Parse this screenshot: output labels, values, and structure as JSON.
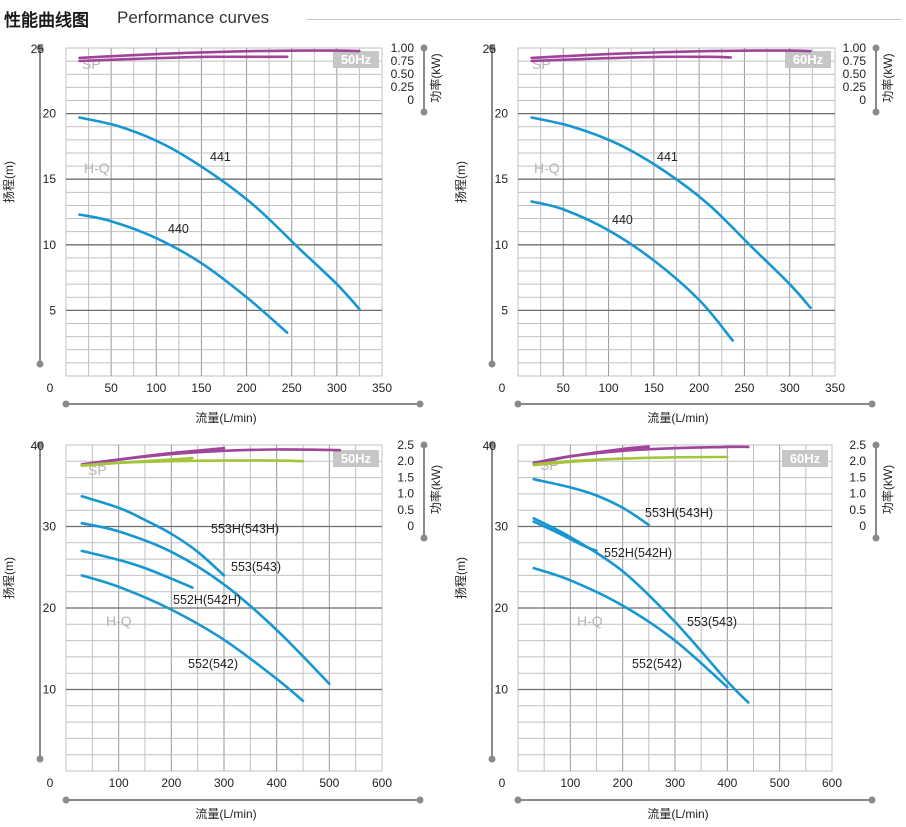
{
  "header": {
    "title_cn": "性能曲线图",
    "title_en": "Performance curves"
  },
  "chart_data": [
    {
      "type": "line",
      "badge": "50Hz",
      "xlabel": "流量(L/min)",
      "ylabel": "扬程(m)",
      "y2label": "功率(kW)",
      "xlim": [
        0,
        350
      ],
      "ylim": [
        0,
        25
      ],
      "y2lim": [
        0,
        1.0
      ],
      "xticks": [
        0,
        50,
        100,
        150,
        200,
        250,
        300,
        350
      ],
      "yticks": [
        5,
        10,
        15,
        20,
        25
      ],
      "y2ticks": [
        "0",
        "0.25",
        "0.50",
        "0.75",
        "1.00"
      ],
      "hq_label": "H-Q",
      "sp_label": "SP",
      "hq_series": [
        {
          "name": "441",
          "x": [
            15,
            60,
            110,
            160,
            210,
            260,
            300,
            325
          ],
          "y": [
            19.7,
            19.0,
            17.6,
            15.5,
            12.9,
            9.6,
            7.0,
            5.1
          ]
        },
        {
          "name": "440",
          "x": [
            15,
            50,
            100,
            150,
            200,
            245
          ],
          "y": [
            12.3,
            11.8,
            10.5,
            8.6,
            6.0,
            3.3
          ]
        }
      ],
      "sp_series": [
        {
          "x": [
            15,
            60,
            110,
            160,
            210,
            260,
            300,
            325
          ],
          "y": [
            0.81,
            0.85,
            0.89,
            0.92,
            0.94,
            0.95,
            0.95,
            0.94
          ]
        },
        {
          "x": [
            15,
            60,
            110,
            160,
            210,
            245
          ],
          "y": [
            0.75,
            0.78,
            0.81,
            0.83,
            0.83,
            0.83
          ]
        }
      ]
    },
    {
      "type": "line",
      "badge": "60Hz",
      "xlabel": "流量(L/min)",
      "ylabel": "扬程(m)",
      "y2label": "功率(kW)",
      "xlim": [
        0,
        350
      ],
      "ylim": [
        0,
        25
      ],
      "y2lim": [
        0,
        1.0
      ],
      "xticks": [
        0,
        50,
        100,
        150,
        200,
        250,
        300,
        350
      ],
      "yticks": [
        5,
        10,
        15,
        20,
        25
      ],
      "y2ticks": [
        "0",
        "0.25",
        "0.50",
        "0.75",
        "1.00"
      ],
      "hq_label": "H-Q",
      "sp_label": "SP",
      "hq_series": [
        {
          "name": "441",
          "x": [
            15,
            60,
            110,
            160,
            210,
            260,
            300,
            323
          ],
          "y": [
            19.7,
            19.0,
            17.7,
            15.7,
            13.1,
            9.7,
            7.0,
            5.2
          ]
        },
        {
          "name": "440",
          "x": [
            15,
            50,
            100,
            150,
            200,
            237
          ],
          "y": [
            13.3,
            12.7,
            11.1,
            8.8,
            5.8,
            2.7
          ]
        }
      ],
      "sp_series": [
        {
          "x": [
            15,
            60,
            110,
            160,
            210,
            260,
            300,
            323
          ],
          "y": [
            0.81,
            0.85,
            0.89,
            0.92,
            0.94,
            0.95,
            0.95,
            0.94
          ]
        },
        {
          "x": [
            15,
            60,
            110,
            160,
            210,
            235
          ],
          "y": [
            0.75,
            0.78,
            0.81,
            0.83,
            0.83,
            0.82
          ]
        }
      ]
    },
    {
      "type": "line",
      "badge": "50Hz",
      "xlabel": "流量(L/min)",
      "ylabel": "扬程(m)",
      "y2label": "功率(kW)",
      "xlim": [
        0,
        600
      ],
      "ylim": [
        0,
        40
      ],
      "y2lim": [
        0,
        2.5
      ],
      "xticks": [
        0,
        100,
        200,
        300,
        400,
        500,
        600
      ],
      "yticks": [
        10,
        20,
        30,
        40
      ],
      "y2ticks": [
        "0",
        "0.5",
        "1.0",
        "1.5",
        "2.0",
        "2.5"
      ],
      "hq_label": "H-Q",
      "sp_label": "SP",
      "hq_series": [
        {
          "name": "553H(543H)",
          "x": [
            30,
            100,
            150,
            200,
            250,
            300
          ],
          "y": [
            33.7,
            32.3,
            30.8,
            29.1,
            26.9,
            24.0
          ]
        },
        {
          "name": "553(543)",
          "x": [
            30,
            100,
            200,
            300,
            400,
            500
          ],
          "y": [
            30.4,
            29.4,
            26.9,
            22.9,
            17.3,
            10.7
          ]
        },
        {
          "name": "552H(542H)",
          "x": [
            30,
            100,
            150,
            200,
            240
          ],
          "y": [
            27.0,
            25.9,
            24.9,
            23.6,
            22.5
          ]
        },
        {
          "name": "552(542)",
          "x": [
            30,
            100,
            200,
            300,
            400,
            450
          ],
          "y": [
            24.0,
            22.6,
            19.8,
            16.1,
            11.3,
            8.6
          ]
        }
      ],
      "sp_series": [
        {
          "x": [
            30,
            100,
            200,
            300,
            400,
            500,
            520
          ],
          "y": [
            1.9,
            2.05,
            2.22,
            2.32,
            2.36,
            2.35,
            2.34
          ]
        },
        {
          "x": [
            30,
            100,
            200,
            300
          ],
          "y": [
            1.88,
            2.05,
            2.25,
            2.4
          ]
        },
        {
          "x": [
            30,
            100,
            200,
            300,
            400,
            450
          ],
          "y": [
            1.87,
            1.95,
            2.0,
            2.02,
            2.02,
            2.0
          ]
        },
        {
          "x": [
            30,
            100,
            200,
            240
          ],
          "y": [
            1.86,
            1.95,
            2.05,
            2.1
          ]
        }
      ]
    },
    {
      "type": "line",
      "badge": "60Hz",
      "xlabel": "流量(L/min)",
      "ylabel": "扬程(m)",
      "y2label": "功率(kW)",
      "xlim": [
        0,
        600
      ],
      "ylim": [
        0,
        40
      ],
      "y2lim": [
        0,
        2.5
      ],
      "xticks": [
        0,
        100,
        200,
        300,
        400,
        500,
        600
      ],
      "yticks": [
        10,
        20,
        30,
        40
      ],
      "y2ticks": [
        "0",
        "0.5",
        "1.0",
        "1.5",
        "2.0",
        "2.5"
      ],
      "hq_label": "H-Q",
      "sp_label": "SP",
      "hq_series": [
        {
          "name": "553H(543H)",
          "x": [
            30,
            100,
            150,
            200,
            250
          ],
          "y": [
            35.8,
            34.8,
            33.8,
            32.3,
            30.2
          ]
        },
        {
          "name": "552H(542H)",
          "x": [
            30,
            80,
            120,
            150
          ],
          "y": [
            30.6,
            29.1,
            27.8,
            27.0
          ]
        },
        {
          "name": "553(543)",
          "x": [
            30,
            100,
            200,
            300,
            400,
            440
          ],
          "y": [
            31.0,
            28.7,
            24.5,
            18.3,
            11.0,
            8.4
          ]
        },
        {
          "name": "552(542)",
          "x": [
            30,
            100,
            200,
            300,
            400
          ],
          "y": [
            24.9,
            23.4,
            20.3,
            16.0,
            10.3
          ]
        }
      ],
      "sp_series": [
        {
          "x": [
            30,
            100,
            200,
            300,
            400,
            440
          ],
          "y": [
            1.95,
            2.15,
            2.32,
            2.4,
            2.44,
            2.44
          ]
        },
        {
          "x": [
            30,
            100,
            200,
            250
          ],
          "y": [
            1.92,
            2.15,
            2.38,
            2.45
          ]
        },
        {
          "x": [
            30,
            100,
            200,
            300,
            400
          ],
          "y": [
            1.9,
            2.0,
            2.08,
            2.12,
            2.13
          ]
        },
        {
          "x": [
            30,
            100,
            150
          ],
          "y": [
            1.88,
            1.98,
            2.03
          ]
        }
      ]
    }
  ],
  "colors": {
    "hq": "#1797d2",
    "sp_purple": "#a0449b",
    "sp_green": "#a6c43b",
    "grid": "#c0c0c0",
    "grid_major": "#6e6e6e",
    "axis": "#8a8a8a",
    "badge_bg": "#c6c6c6",
    "badge_fg": "#ffffff",
    "text": "#222222",
    "faint": "#b4b4b4"
  }
}
